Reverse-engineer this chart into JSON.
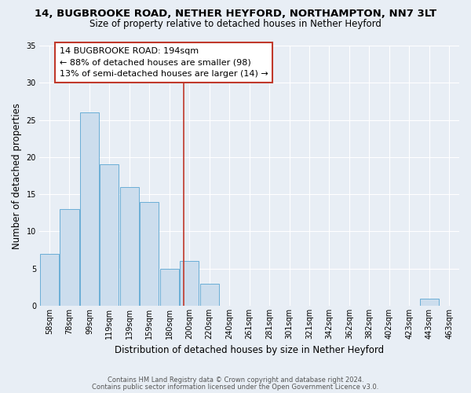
{
  "title": "14, BUGBROOKE ROAD, NETHER HEYFORD, NORTHAMPTON, NN7 3LT",
  "subtitle": "Size of property relative to detached houses in Nether Heyford",
  "xlabel": "Distribution of detached houses by size in Nether Heyford",
  "ylabel": "Number of detached properties",
  "bin_labels": [
    "58sqm",
    "78sqm",
    "99sqm",
    "119sqm",
    "139sqm",
    "159sqm",
    "180sqm",
    "200sqm",
    "220sqm",
    "240sqm",
    "261sqm",
    "281sqm",
    "301sqm",
    "321sqm",
    "342sqm",
    "362sqm",
    "382sqm",
    "402sqm",
    "423sqm",
    "443sqm",
    "463sqm"
  ],
  "bin_values": [
    58,
    78,
    99,
    119,
    139,
    159,
    180,
    200,
    220,
    240,
    261,
    281,
    301,
    321,
    342,
    362,
    382,
    402,
    423,
    443,
    463
  ],
  "bar_heights": [
    7,
    13,
    26,
    19,
    16,
    14,
    5,
    6,
    3,
    0,
    0,
    0,
    0,
    0,
    0,
    0,
    0,
    0,
    0,
    1,
    0
  ],
  "bar_color": "#ccdded",
  "bar_edge_color": "#6aaed6",
  "marker_value": 194,
  "marker_color": "#c0392b",
  "annotation_title": "14 BUGBROOKE ROAD: 194sqm",
  "annotation_line1": "← 88% of detached houses are smaller (98)",
  "annotation_line2": "13% of semi-detached houses are larger (14) →",
  "annotation_box_facecolor": "#ffffff",
  "annotation_box_edgecolor": "#c0392b",
  "ylim": [
    0,
    35
  ],
  "yticks": [
    0,
    5,
    10,
    15,
    20,
    25,
    30,
    35
  ],
  "footer1": "Contains HM Land Registry data © Crown copyright and database right 2024.",
  "footer2": "Contains public sector information licensed under the Open Government Licence v3.0.",
  "bg_color": "#e8eef5",
  "title_fontsize": 9.5,
  "subtitle_fontsize": 8.5,
  "axis_label_fontsize": 8.5,
  "tick_fontsize": 7,
  "annotation_fontsize": 8,
  "footer_fontsize": 6
}
